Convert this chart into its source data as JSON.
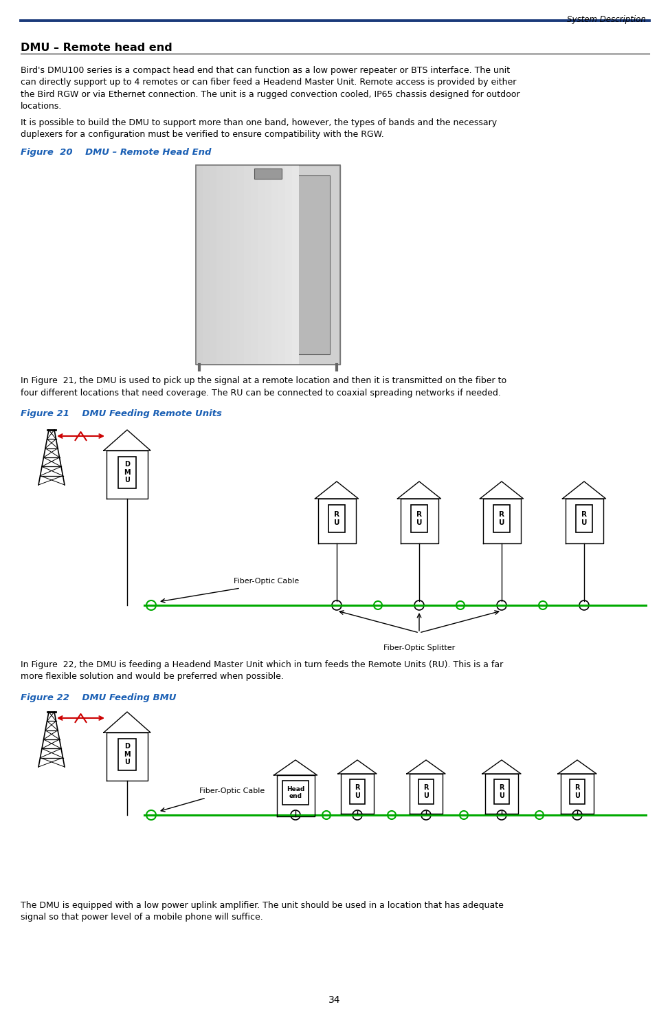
{
  "page_width": 9.75,
  "page_height": 14.67,
  "bg_color": "#ffffff",
  "header_text": "System Description",
  "header_line_color": "#1a3a7a",
  "footer_number": "34",
  "title_dmu": "DMU – Remote head end",
  "body_text1": "Bird's DMU100 series is a compact head end that can function as a low power repeater or BTS interface. The unit\ncan directly support up to 4 remotes or can fiber feed a Headend Master Unit. Remote access is provided by either\nthe Bird RGW or via Ethernet connection. The unit is a rugged convection cooled, IP65 chassis designed for outdoor\nlocations.",
  "body_text2": "It is possible to build the DMU to support more than one band, however, the types of bands and the necessary\nduplexers for a configuration must be verified to ensure compatibility with the RGW.",
  "fig20_label": "Figure  20    DMU – Remote Head End",
  "fig21_label": "Figure 21    DMU Feeding Remote Units",
  "fig21_body": "In Figure  21, the DMU is used to pick up the signal at a remote location and then it is transmitted on the fiber to\nfour different locations that need coverage. The RU can be connected to coaxial spreading networks if needed.",
  "fig22_label": "Figure 22    DMU Feeding BMU",
  "fig22_body": "In Figure  22, the DMU is feeding a Headend Master Unit which in turn feeds the Remote Units (RU). This is a far\nmore flexible solution and would be preferred when possible.",
  "footer_text": "The DMU is equipped with a low power uplink amplifier. The unit should be used in a location that has adequate\nsignal so that power level of a mobile phone will suffice.",
  "accent_color": "#1a5fb4",
  "red_color": "#cc0000",
  "green_color": "#00aa00",
  "black": "#000000",
  "fig21_fiber_label": "Fiber-Optic Cable",
  "fig21_splitter_label": "Fiber-Optic Splitter",
  "fig22_fiber_label": "Fiber-Optic Cable"
}
